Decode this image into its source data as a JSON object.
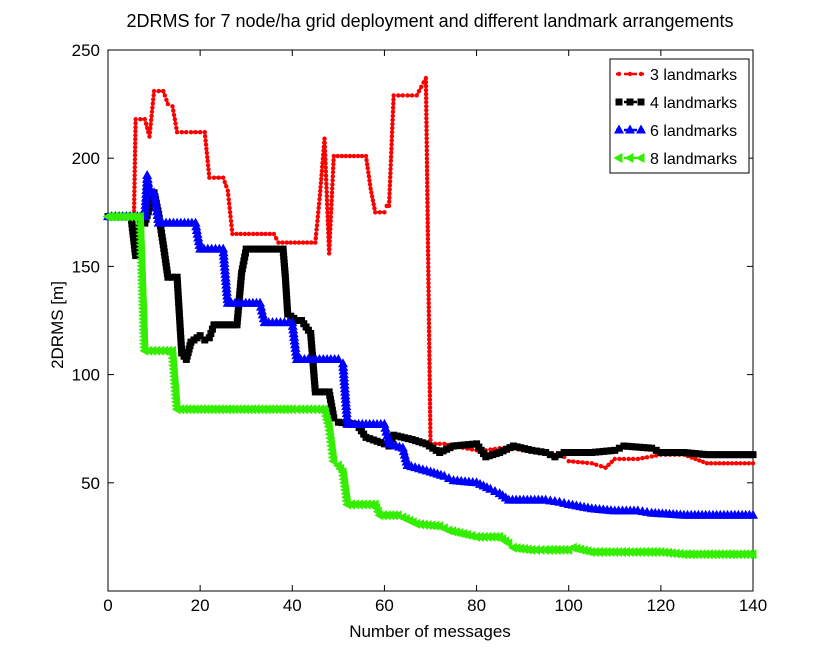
{
  "chart_data": {
    "type": "line",
    "title": "2DRMS for 7 node/ha grid deployment and different landmark arrangements",
    "xlabel": "Number of messages",
    "ylabel": "2DRMS [m]",
    "xlim": [
      0,
      140
    ],
    "ylim": [
      0,
      250
    ],
    "xticks": [
      0,
      20,
      40,
      60,
      80,
      100,
      120,
      140
    ],
    "yticks": [
      50,
      100,
      150,
      200,
      250
    ],
    "legend_position": "top-right",
    "series": [
      {
        "name": "3 landmarks",
        "color": "#ff0000",
        "marker": "dot",
        "points": [
          [
            5,
            172
          ],
          [
            5.5,
            157
          ],
          [
            6,
            218
          ],
          [
            8,
            218
          ],
          [
            9,
            210
          ],
          [
            10,
            231
          ],
          [
            12,
            231
          ],
          [
            13,
            225
          ],
          [
            14,
            224
          ],
          [
            15,
            212
          ],
          [
            21,
            212
          ],
          [
            22,
            191
          ],
          [
            25,
            191
          ],
          [
            26,
            185
          ],
          [
            27,
            165
          ],
          [
            36,
            165
          ],
          [
            37,
            161
          ],
          [
            45,
            161
          ],
          [
            46,
            183
          ],
          [
            47,
            209
          ],
          [
            48,
            156
          ],
          [
            49,
            201
          ],
          [
            56,
            201
          ],
          [
            57,
            186
          ],
          [
            58,
            175
          ],
          [
            60,
            175
          ],
          [
            60.5,
            178
          ],
          [
            61,
            178
          ],
          [
            62,
            229
          ],
          [
            67,
            229
          ],
          [
            68,
            233
          ],
          [
            69,
            237
          ],
          [
            70,
            68
          ],
          [
            73,
            68
          ],
          [
            75,
            67
          ],
          [
            80,
            65
          ],
          [
            82,
            65
          ],
          [
            85,
            66
          ],
          [
            88,
            66
          ],
          [
            90,
            65
          ],
          [
            95,
            64
          ],
          [
            99,
            62
          ],
          [
            100,
            60
          ],
          [
            105,
            59
          ],
          [
            108,
            57
          ],
          [
            110,
            61
          ],
          [
            115,
            61
          ],
          [
            120,
            63
          ],
          [
            125,
            63
          ],
          [
            130,
            59
          ],
          [
            140,
            59
          ]
        ]
      },
      {
        "name": "4 landmarks",
        "color": "#000000",
        "marker": "square",
        "points": [
          [
            0,
            173
          ],
          [
            5,
            173
          ],
          [
            6,
            155
          ],
          [
            7,
            170
          ],
          [
            8,
            170
          ],
          [
            9,
            177
          ],
          [
            10,
            184
          ],
          [
            11,
            174
          ],
          [
            12,
            160
          ],
          [
            13,
            145
          ],
          [
            15,
            145
          ],
          [
            16,
            110
          ],
          [
            17,
            107
          ],
          [
            18,
            115
          ],
          [
            20,
            118
          ],
          [
            21,
            116
          ],
          [
            22,
            117
          ],
          [
            23,
            123
          ],
          [
            28,
            123
          ],
          [
            29,
            147
          ],
          [
            30,
            158
          ],
          [
            38,
            158
          ],
          [
            38.5,
            145
          ],
          [
            39,
            128
          ],
          [
            41,
            125
          ],
          [
            42,
            125
          ],
          [
            44,
            119
          ],
          [
            45,
            92
          ],
          [
            48,
            92
          ],
          [
            49,
            80
          ],
          [
            50,
            78
          ],
          [
            54,
            77
          ],
          [
            56,
            71
          ],
          [
            60,
            68
          ],
          [
            61,
            67
          ],
          [
            62,
            72
          ],
          [
            66,
            70
          ],
          [
            69,
            68
          ],
          [
            72,
            64
          ],
          [
            75,
            67
          ],
          [
            80,
            68
          ],
          [
            82,
            62
          ],
          [
            85,
            64
          ],
          [
            88,
            67
          ],
          [
            92,
            65
          ],
          [
            95,
            64
          ],
          [
            97,
            62
          ],
          [
            99,
            64
          ],
          [
            105,
            64
          ],
          [
            110,
            65
          ],
          [
            112,
            67
          ],
          [
            118,
            66
          ],
          [
            120,
            64
          ],
          [
            125,
            64
          ],
          [
            130,
            63
          ],
          [
            140,
            63
          ]
        ]
      },
      {
        "name": "6 landmarks",
        "color": "#0000ff",
        "marker": "triangle-up",
        "points": [
          [
            0,
            173
          ],
          [
            8,
            173
          ],
          [
            8.5,
            192
          ],
          [
            9,
            185
          ],
          [
            10,
            184
          ],
          [
            11,
            170
          ],
          [
            19,
            170
          ],
          [
            20,
            158
          ],
          [
            25,
            158
          ],
          [
            26,
            133
          ],
          [
            33,
            133
          ],
          [
            34,
            124
          ],
          [
            40,
            124
          ],
          [
            41,
            107
          ],
          [
            50,
            107
          ],
          [
            51,
            105
          ],
          [
            52,
            77
          ],
          [
            60,
            77
          ],
          [
            61,
            68
          ],
          [
            64,
            66
          ],
          [
            65,
            58
          ],
          [
            70,
            55
          ],
          [
            73,
            53
          ],
          [
            75,
            51
          ],
          [
            80,
            50
          ],
          [
            83,
            47
          ],
          [
            85,
            45
          ],
          [
            87,
            42
          ],
          [
            95,
            42
          ],
          [
            98,
            41
          ],
          [
            100,
            40
          ],
          [
            105,
            38
          ],
          [
            110,
            37
          ],
          [
            115,
            37
          ],
          [
            118,
            36
          ],
          [
            125,
            35
          ],
          [
            140,
            35
          ]
        ]
      },
      {
        "name": "8 landmarks",
        "color": "#33ee00",
        "marker": "triangle-left",
        "points": [
          [
            0,
            173
          ],
          [
            7,
            173
          ],
          [
            8,
            111
          ],
          [
            14,
            111
          ],
          [
            15,
            84
          ],
          [
            40,
            84
          ],
          [
            41,
            84
          ],
          [
            47,
            84
          ],
          [
            48,
            76
          ],
          [
            49,
            60
          ],
          [
            50,
            58
          ],
          [
            51,
            55
          ],
          [
            52,
            40
          ],
          [
            58,
            40
          ],
          [
            59,
            35
          ],
          [
            63,
            35
          ],
          [
            64,
            34
          ],
          [
            67,
            31
          ],
          [
            72,
            30
          ],
          [
            74,
            28
          ],
          [
            78,
            26
          ],
          [
            80,
            25
          ],
          [
            85,
            25
          ],
          [
            87,
            22
          ],
          [
            88,
            20
          ],
          [
            92,
            19
          ],
          [
            95,
            19
          ],
          [
            100,
            19
          ],
          [
            101,
            20
          ],
          [
            105,
            18
          ],
          [
            110,
            18
          ],
          [
            115,
            18
          ],
          [
            120,
            18
          ],
          [
            125,
            17
          ],
          [
            140,
            17
          ]
        ]
      }
    ]
  }
}
